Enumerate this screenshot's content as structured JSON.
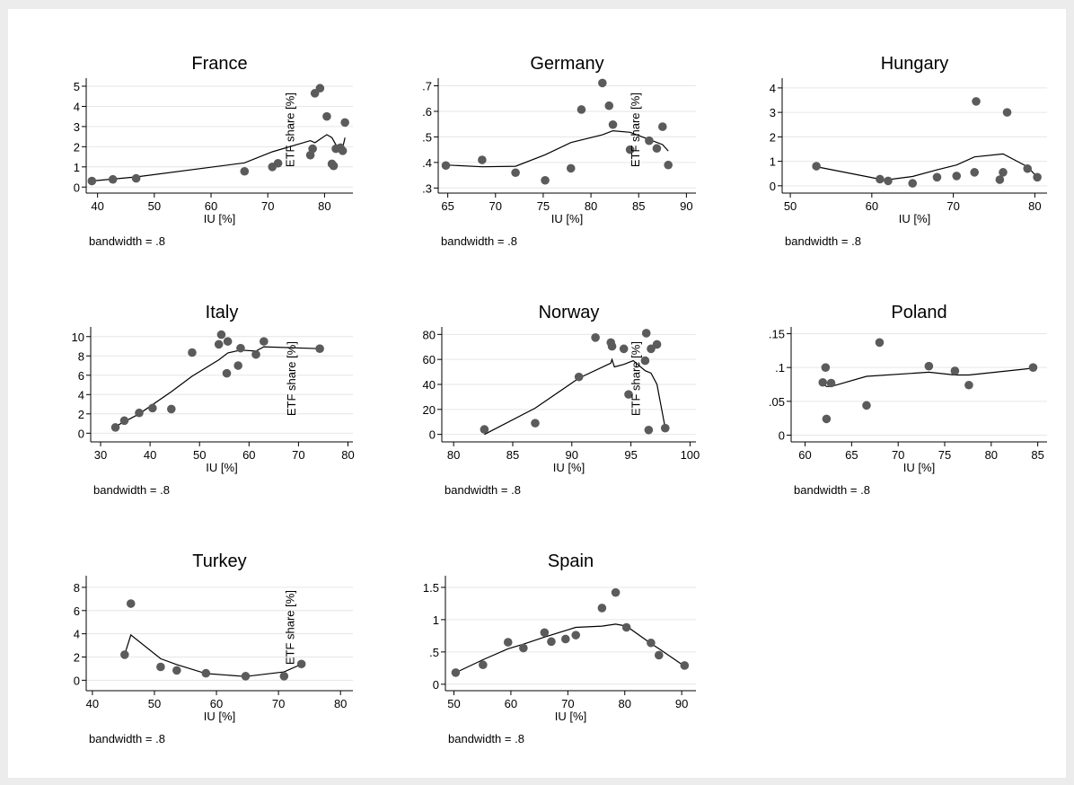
{
  "chart_data": [
    {
      "type": "scatter",
      "title": "France",
      "xlabel": "IU [%]",
      "ylabel": "ETF share [%]",
      "note": "bandwidth = .8",
      "xlim": [
        38,
        85
      ],
      "ylim": [
        -0.3,
        5.4
      ],
      "xticks": [
        40,
        50,
        60,
        70,
        80
      ],
      "yticks": [
        0,
        1,
        2,
        3,
        4,
        5
      ],
      "ytick_labels": [
        "0",
        "1",
        "2",
        "3",
        "4",
        "5"
      ],
      "points": [
        [
          39,
          0.3
        ],
        [
          42.7,
          0.38
        ],
        [
          46.8,
          0.43
        ],
        [
          65.9,
          0.78
        ],
        [
          70.8,
          1.0
        ],
        [
          71.8,
          1.18
        ],
        [
          77.5,
          1.58
        ],
        [
          77.9,
          1.9
        ],
        [
          78.3,
          4.65
        ],
        [
          79.2,
          4.9
        ],
        [
          80.4,
          3.5
        ],
        [
          81.3,
          1.15
        ],
        [
          81.6,
          1.05
        ],
        [
          82.0,
          1.9
        ],
        [
          82.8,
          1.95
        ],
        [
          83.2,
          1.8
        ],
        [
          83.6,
          3.2
        ]
      ],
      "smooth": [
        [
          39,
          0.3
        ],
        [
          46.8,
          0.5
        ],
        [
          65.9,
          1.2
        ],
        [
          70.8,
          1.75
        ],
        [
          77.5,
          2.3
        ],
        [
          78.3,
          2.2
        ],
        [
          80.4,
          2.6
        ],
        [
          81.3,
          2.45
        ],
        [
          82.0,
          2.1
        ],
        [
          83.2,
          1.95
        ],
        [
          83.6,
          2.45
        ]
      ]
    },
    {
      "type": "scatter",
      "title": "Germany",
      "xlabel": "IU [%]",
      "ylabel": "ETF share [%]",
      "note": "bandwidth = .8",
      "xlim": [
        64,
        91
      ],
      "ylim": [
        0.28,
        0.73
      ],
      "xticks": [
        65,
        70,
        75,
        80,
        85,
        90
      ],
      "yticks": [
        0.3,
        0.4,
        0.5,
        0.6,
        0.7
      ],
      "ytick_labels": [
        ".3",
        ".4",
        ".5",
        ".6",
        ".7"
      ],
      "points": [
        [
          64.8,
          0.388
        ],
        [
          68.6,
          0.41
        ],
        [
          72.1,
          0.36
        ],
        [
          75.2,
          0.33
        ],
        [
          77.9,
          0.377
        ],
        [
          79.0,
          0.607
        ],
        [
          81.2,
          0.711
        ],
        [
          81.9,
          0.622
        ],
        [
          82.3,
          0.548
        ],
        [
          84.1,
          0.45
        ],
        [
          86.1,
          0.485
        ],
        [
          86.9,
          0.455
        ],
        [
          87.5,
          0.54
        ],
        [
          88.1,
          0.39
        ]
      ],
      "smooth": [
        [
          64.8,
          0.39
        ],
        [
          68.6,
          0.383
        ],
        [
          72.1,
          0.385
        ],
        [
          75.2,
          0.43
        ],
        [
          77.9,
          0.478
        ],
        [
          81.2,
          0.508
        ],
        [
          82.3,
          0.524
        ],
        [
          84.1,
          0.518
        ],
        [
          86.1,
          0.49
        ],
        [
          87.5,
          0.47
        ],
        [
          88.1,
          0.445
        ]
      ]
    },
    {
      "type": "scatter",
      "title": "Hungary",
      "xlabel": "IU [%]",
      "ylabel": "",
      "note": "bandwidth = .8",
      "xlim": [
        49,
        81.5
      ],
      "ylim": [
        -0.3,
        4.4
      ],
      "xticks": [
        50,
        60,
        70,
        80
      ],
      "yticks": [
        0,
        1,
        2,
        3,
        4
      ],
      "ytick_labels": [
        "0",
        "1",
        "2",
        "3",
        "4"
      ],
      "points": [
        [
          53.2,
          0.8
        ],
        [
          61.0,
          0.27
        ],
        [
          62.0,
          0.2
        ],
        [
          65.0,
          0.1
        ],
        [
          68.0,
          0.35
        ],
        [
          70.4,
          0.4
        ],
        [
          72.6,
          0.55
        ],
        [
          72.8,
          3.45
        ],
        [
          75.7,
          0.25
        ],
        [
          76.1,
          0.55
        ],
        [
          76.6,
          3.0
        ],
        [
          79.1,
          0.7
        ],
        [
          80.3,
          0.35
        ]
      ],
      "smooth": [
        [
          53.2,
          0.78
        ],
        [
          61.0,
          0.27
        ],
        [
          62.0,
          0.25
        ],
        [
          65.0,
          0.38
        ],
        [
          68.0,
          0.65
        ],
        [
          70.4,
          0.85
        ],
        [
          72.6,
          1.18
        ],
        [
          76.1,
          1.3
        ],
        [
          79.1,
          0.78
        ],
        [
          80.3,
          0.35
        ]
      ]
    },
    {
      "type": "scatter",
      "title": "Italy",
      "xlabel": "IU [%]",
      "ylabel": "ETF share [%]",
      "note": "bandwidth = .8",
      "xlim": [
        28,
        81
      ],
      "ylim": [
        -0.9,
        11
      ],
      "xticks": [
        30,
        40,
        50,
        60,
        70,
        80
      ],
      "yticks": [
        0,
        2,
        4,
        6,
        8,
        10
      ],
      "ytick_labels": [
        "0",
        "2",
        "4",
        "6",
        "8",
        "10"
      ],
      "points": [
        [
          33.0,
          0.6
        ],
        [
          34.8,
          1.3
        ],
        [
          37.8,
          2.1
        ],
        [
          40.5,
          2.6
        ],
        [
          44.3,
          2.5
        ],
        [
          48.5,
          8.35
        ],
        [
          53.9,
          9.2
        ],
        [
          54.4,
          10.2
        ],
        [
          55.5,
          6.2
        ],
        [
          55.7,
          9.5
        ],
        [
          57.8,
          7.0
        ],
        [
          58.3,
          8.8
        ],
        [
          61.4,
          8.15
        ],
        [
          63.0,
          9.5
        ],
        [
          74.3,
          8.75
        ]
      ],
      "smooth": [
        [
          33.0,
          0.7
        ],
        [
          37.8,
          2.0
        ],
        [
          44.3,
          4.3
        ],
        [
          48.5,
          5.9
        ],
        [
          53.9,
          7.6
        ],
        [
          55.7,
          8.3
        ],
        [
          58.3,
          8.6
        ],
        [
          61.4,
          8.5
        ],
        [
          63.0,
          8.95
        ],
        [
          74.3,
          8.75
        ]
      ]
    },
    {
      "type": "scatter",
      "title": "Norway",
      "xlabel": "IU [%]",
      "ylabel": "ETF share [%]",
      "note": "bandwidth = .8",
      "xlim": [
        79,
        100.5
      ],
      "ylim": [
        -6,
        86
      ],
      "xticks": [
        80,
        85,
        90,
        95,
        100
      ],
      "yticks": [
        0,
        20,
        40,
        60,
        80
      ],
      "ytick_labels": [
        "0",
        "20",
        "40",
        "60",
        "80"
      ],
      "points": [
        [
          82.6,
          4.0
        ],
        [
          86.9,
          9.0
        ],
        [
          90.6,
          46.0
        ],
        [
          92.0,
          77.5
        ],
        [
          93.3,
          73.5
        ],
        [
          93.4,
          70.5
        ],
        [
          94.4,
          68.5
        ],
        [
          94.8,
          32.0
        ],
        [
          96.2,
          59.0
        ],
        [
          96.3,
          81.0
        ],
        [
          96.5,
          3.5
        ],
        [
          96.7,
          68.5
        ],
        [
          97.2,
          72.0
        ],
        [
          97.9,
          5.0
        ]
      ],
      "smooth": [
        [
          82.6,
          0.0
        ],
        [
          86.9,
          21.0
        ],
        [
          90.6,
          45.0
        ],
        [
          93.3,
          57.0
        ],
        [
          93.4,
          60.0
        ],
        [
          93.6,
          54.0
        ],
        [
          94.4,
          56.0
        ],
        [
          95.2,
          59.0
        ],
        [
          96.2,
          51.0
        ],
        [
          96.7,
          49.0
        ],
        [
          97.2,
          40.0
        ],
        [
          97.9,
          5.0
        ]
      ]
    },
    {
      "type": "scatter",
      "title": "Poland",
      "xlabel": "IU [%]",
      "ylabel": "",
      "note": "bandwidth = .8",
      "xlim": [
        58.5,
        86
      ],
      "ylim": [
        -0.01,
        0.16
      ],
      "xticks": [
        60,
        65,
        70,
        75,
        80,
        85
      ],
      "yticks": [
        0,
        0.05,
        0.1,
        0.15
      ],
      "ytick_labels": [
        "0",
        ".05",
        ".1",
        ".15"
      ],
      "points": [
        [
          61.9,
          0.078
        ],
        [
          62.2,
          0.1
        ],
        [
          62.3,
          0.024
        ],
        [
          62.8,
          0.077
        ],
        [
          66.6,
          0.044
        ],
        [
          68.0,
          0.137
        ],
        [
          73.3,
          0.102
        ],
        [
          76.1,
          0.095
        ],
        [
          77.6,
          0.074
        ],
        [
          84.5,
          0.1
        ]
      ],
      "smooth": [
        [
          61.9,
          0.076
        ],
        [
          62.3,
          0.072
        ],
        [
          62.8,
          0.072
        ],
        [
          66.6,
          0.087
        ],
        [
          73.3,
          0.093
        ],
        [
          76.1,
          0.089
        ],
        [
          77.6,
          0.089
        ],
        [
          84.5,
          0.099
        ]
      ]
    },
    {
      "type": "scatter",
      "title": "Turkey",
      "xlabel": "IU [%]",
      "ylabel": "ETF share [%]",
      "note": "bandwidth = .8",
      "xlim": [
        39,
        82
      ],
      "ylim": [
        -0.9,
        9
      ],
      "xticks": [
        40,
        50,
        60,
        70,
        80
      ],
      "yticks": [
        0,
        2,
        4,
        6,
        8
      ],
      "ytick_labels": [
        "0",
        "2",
        "4",
        "6",
        "8"
      ],
      "points": [
        [
          45.2,
          2.2
        ],
        [
          46.2,
          6.6
        ],
        [
          51.0,
          1.15
        ],
        [
          53.6,
          0.85
        ],
        [
          58.3,
          0.6
        ],
        [
          64.7,
          0.35
        ],
        [
          70.9,
          0.35
        ],
        [
          73.7,
          1.4
        ]
      ],
      "smooth": [
        [
          45.2,
          2.2
        ],
        [
          46.2,
          3.9
        ],
        [
          51.0,
          1.85
        ],
        [
          53.6,
          1.35
        ],
        [
          58.3,
          0.58
        ],
        [
          64.7,
          0.32
        ],
        [
          70.9,
          0.72
        ],
        [
          73.7,
          1.38
        ]
      ]
    },
    {
      "type": "scatter",
      "title": "Spain",
      "xlabel": "IU [%]",
      "ylabel": "",
      "note": "bandwidth = .8",
      "xlim": [
        48.5,
        92.5
      ],
      "ylim": [
        -0.1,
        1.68
      ],
      "xticks": [
        50,
        60,
        70,
        80,
        90
      ],
      "yticks": [
        0,
        0.5,
        1,
        1.5
      ],
      "ytick_labels": [
        "0",
        ".5",
        "1",
        "1.5"
      ],
      "points": [
        [
          50.3,
          0.18
        ],
        [
          55.1,
          0.3
        ],
        [
          59.5,
          0.65
        ],
        [
          62.2,
          0.56
        ],
        [
          65.9,
          0.8
        ],
        [
          67.1,
          0.66
        ],
        [
          69.6,
          0.7
        ],
        [
          71.4,
          0.76
        ],
        [
          76.0,
          1.18
        ],
        [
          78.4,
          1.42
        ],
        [
          80.3,
          0.88
        ],
        [
          84.6,
          0.64
        ],
        [
          86.0,
          0.45
        ],
        [
          90.5,
          0.29
        ]
      ],
      "smooth": [
        [
          50.3,
          0.18
        ],
        [
          55.1,
          0.38
        ],
        [
          59.5,
          0.55
        ],
        [
          62.2,
          0.62
        ],
        [
          65.9,
          0.73
        ],
        [
          71.4,
          0.88
        ],
        [
          76.0,
          0.9
        ],
        [
          78.4,
          0.93
        ],
        [
          80.3,
          0.9
        ],
        [
          84.6,
          0.63
        ],
        [
          86.0,
          0.55
        ],
        [
          90.5,
          0.28
        ]
      ]
    }
  ]
}
